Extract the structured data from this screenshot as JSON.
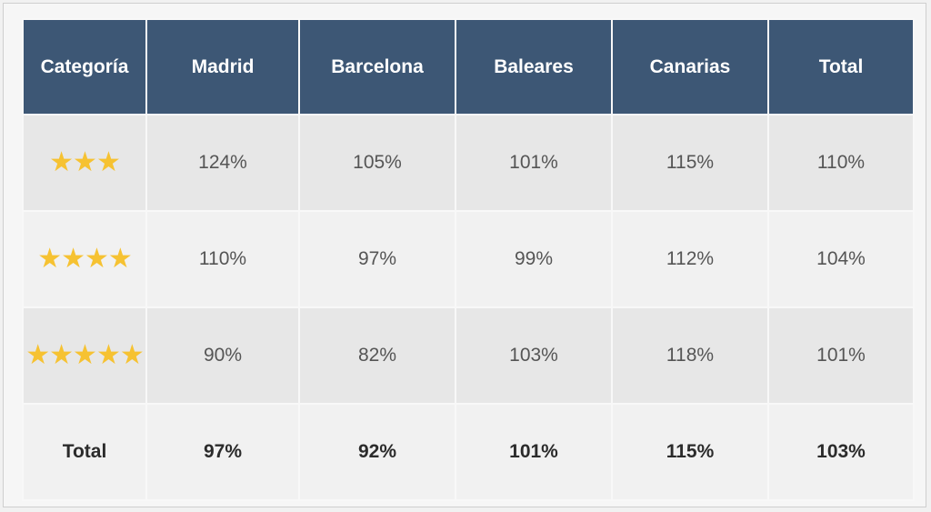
{
  "table": {
    "headers": [
      "Categoría",
      "Madrid",
      "Barcelona",
      "Baleares",
      "Canarias",
      "Total"
    ],
    "rows": [
      {
        "category_icon": "star-rating-icon",
        "stars": 3,
        "values": [
          "124%",
          "105%",
          "101%",
          "115%",
          "110%"
        ]
      },
      {
        "category_icon": "star-rating-icon",
        "stars": 4,
        "values": [
          "110%",
          "97%",
          "99%",
          "112%",
          "104%"
        ]
      },
      {
        "category_icon": "star-rating-icon",
        "stars": 5,
        "values": [
          "90%",
          "82%",
          "103%",
          "118%",
          "101%"
        ]
      }
    ],
    "total_row": {
      "label": "Total",
      "values": [
        "97%",
        "92%",
        "101%",
        "115%",
        "103%"
      ]
    }
  },
  "chart_data": {
    "type": "table",
    "columns": [
      "Categoría",
      "Madrid",
      "Barcelona",
      "Baleares",
      "Canarias",
      "Total"
    ],
    "rows": [
      {
        "category_stars": 3,
        "Madrid": "124%",
        "Barcelona": "105%",
        "Baleares": "101%",
        "Canarias": "115%",
        "Total": "110%"
      },
      {
        "category_stars": 4,
        "Madrid": "110%",
        "Barcelona": "97%",
        "Baleares": "99%",
        "Canarias": "112%",
        "Total": "104%"
      },
      {
        "category_stars": 5,
        "Madrid": "90%",
        "Barcelona": "82%",
        "Baleares": "103%",
        "Canarias": "118%",
        "Total": "101%"
      },
      {
        "category": "Total",
        "Madrid": "97%",
        "Barcelona": "92%",
        "Baleares": "101%",
        "Canarias": "115%",
        "Total": "103%"
      }
    ]
  },
  "colors": {
    "header_bg": "#3d5775",
    "header_text": "#ffffff",
    "star": "#f6c232",
    "row_dark": "#e7e7e7",
    "row_light": "#f1f1f1"
  }
}
